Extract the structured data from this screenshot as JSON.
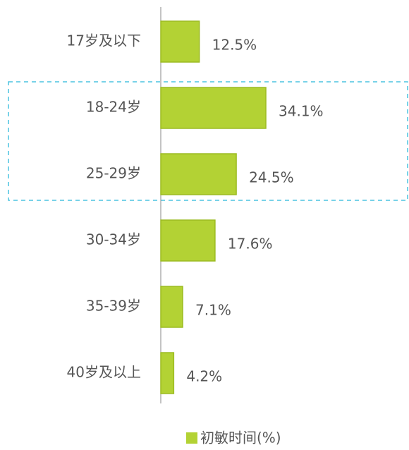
{
  "chart_data": {
    "type": "bar",
    "categories": [
      "17岁及以下",
      "18-24岁",
      "25-29岁",
      "30-34岁",
      "35-39岁",
      "40岁及以上"
    ],
    "series": [
      {
        "name": "初敏时间(%)",
        "color": "#b3d234",
        "values": [
          12.5,
          34.1,
          24.5,
          17.6,
          7.1,
          4.2
        ],
        "value_labels": [
          "12.5%",
          "34.1%",
          "24.5%",
          "17.6%",
          "7.1%",
          "4.2%"
        ]
      }
    ]
  }
}
